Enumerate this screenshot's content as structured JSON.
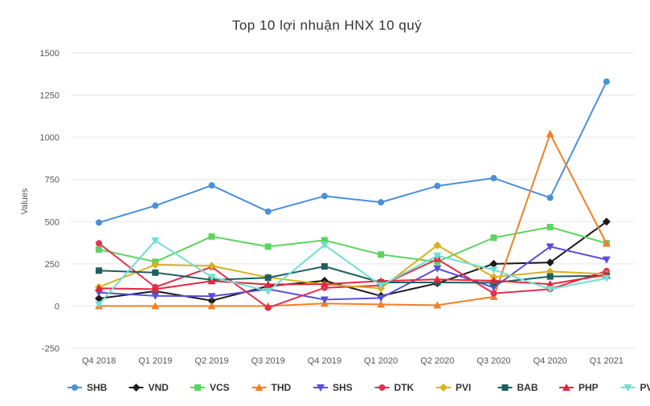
{
  "chart_data": {
    "type": "line",
    "title": "Top 10 lợi nhuận HNX 10 quý",
    "xlabel": "",
    "ylabel": "Values",
    "ylim": [
      -250,
      1500
    ],
    "yticks": [
      "-250",
      "0",
      "250",
      "500",
      "750",
      "1000",
      "1250",
      "1500"
    ],
    "ytick_values": [
      -250,
      0,
      250,
      500,
      750,
      1000,
      1250,
      1500
    ],
    "grid": true,
    "legend_position": "bottom",
    "categories": [
      "Q4 2018",
      "Q1 2019",
      "Q2 2019",
      "Q3 2019",
      "Q4 2019",
      "Q1 2020",
      "Q2 2020",
      "Q3 2020",
      "Q4 2020",
      "Q1 2021"
    ],
    "series": [
      {
        "name": "SHB",
        "color": "#4a90d9",
        "marker": "circle",
        "values": [
          495,
          595,
          715,
          560,
          652,
          615,
          712,
          758,
          642,
          1330
        ]
      },
      {
        "name": "VND",
        "color": "#1a1a1a",
        "marker": "diamond",
        "values": [
          45,
          88,
          32,
          118,
          150,
          60,
          135,
          250,
          258,
          500
        ]
      },
      {
        "name": "VCS",
        "color": "#5ed35e",
        "marker": "square",
        "values": [
          335,
          262,
          412,
          352,
          390,
          305,
          262,
          405,
          468,
          372
        ]
      },
      {
        "name": "THD",
        "color": "#f0802a",
        "marker": "triangle",
        "values": [
          0,
          0,
          0,
          0,
          15,
          10,
          5,
          55,
          1020,
          370
        ]
      },
      {
        "name": "SHS",
        "color": "#5a4fd8",
        "marker": "triangle-down",
        "values": [
          80,
          60,
          58,
          100,
          38,
          48,
          222,
          110,
          352,
          275
        ]
      },
      {
        "name": "DTK",
        "color": "#e33050",
        "marker": "circle",
        "values": [
          372,
          112,
          232,
          -10,
          108,
          122,
          278,
          75,
          100,
          208
        ]
      },
      {
        "name": "PVI",
        "color": "#d8b21f",
        "marker": "diamond",
        "values": [
          112,
          245,
          238,
          170,
          128,
          105,
          360,
          172,
          205,
          190
        ]
      },
      {
        "name": "BAB",
        "color": "#1f5f5f",
        "marker": "square",
        "values": [
          210,
          198,
          155,
          168,
          235,
          140,
          140,
          138,
          175,
          180
        ]
      },
      {
        "name": "PHP",
        "color": "#e3263e",
        "marker": "triangle",
        "values": [
          105,
          100,
          148,
          128,
          130,
          148,
          158,
          150,
          130,
          185
        ]
      },
      {
        "name": "PVS",
        "color": "#6fe0d0",
        "marker": "triangle-down",
        "values": [
          10,
          388,
          172,
          88,
          362,
          122,
          298,
          215,
          100,
          165
        ]
      }
    ]
  }
}
